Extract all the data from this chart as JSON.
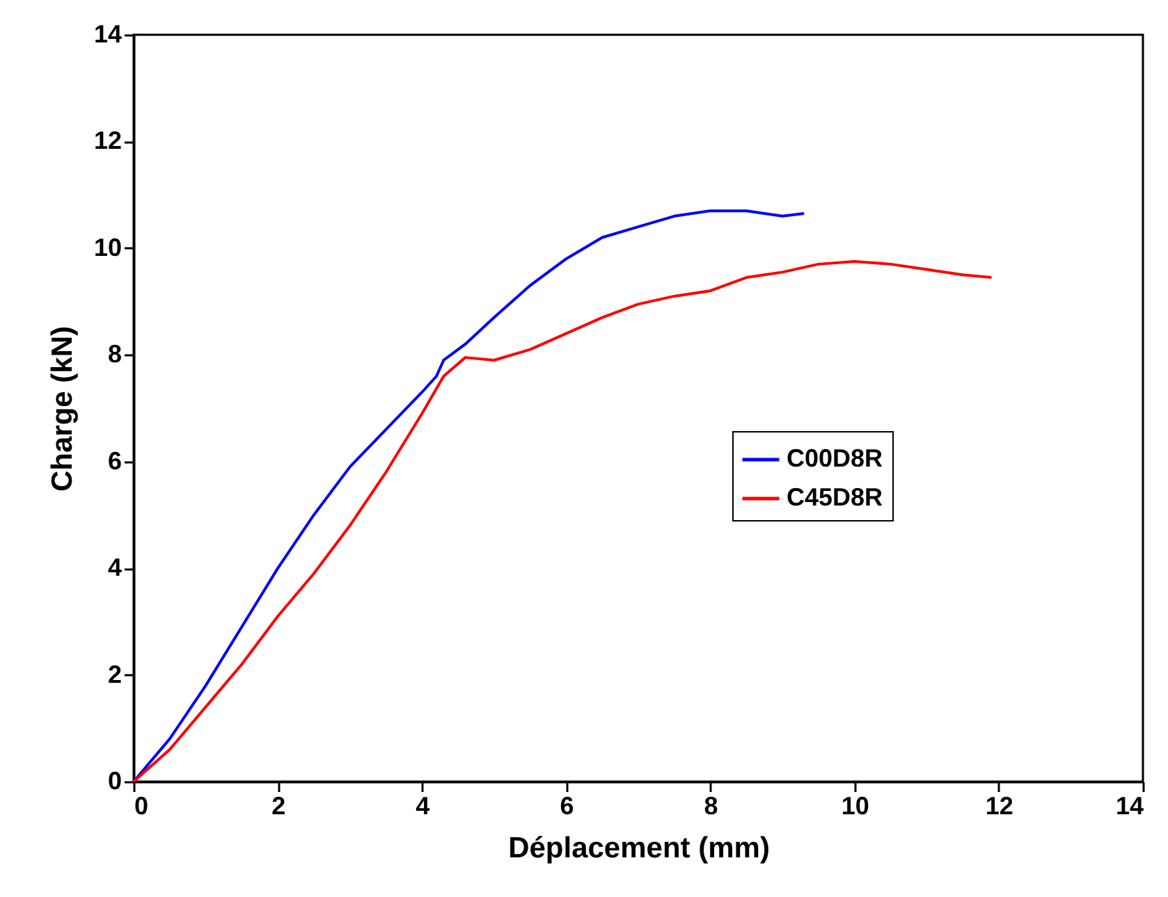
{
  "chart_data": {
    "type": "line",
    "xlabel": "Déplacement (mm)",
    "ylabel": "Charge (kN)",
    "xlim": [
      0,
      14
    ],
    "ylim": [
      0,
      14
    ],
    "xticks": [
      0,
      2,
      4,
      6,
      8,
      10,
      12,
      14
    ],
    "yticks": [
      0,
      2,
      4,
      6,
      8,
      10,
      12,
      14
    ],
    "grid": false,
    "legend": "right",
    "marker": "none",
    "line_style": "solid",
    "series": [
      {
        "name": "C00D8R",
        "color": "#0000ff",
        "x": [
          0,
          0.5,
          1,
          1.5,
          2,
          2.5,
          3,
          3.5,
          4,
          4.2,
          4.3,
          4.6,
          5,
          5.5,
          6,
          6.5,
          7,
          7.5,
          8,
          8.5,
          9,
          9.3
        ],
        "values": [
          0,
          0.8,
          1.8,
          2.9,
          4.0,
          5.0,
          5.9,
          6.6,
          7.3,
          7.6,
          7.9,
          8.2,
          8.7,
          9.3,
          9.8,
          10.2,
          10.4,
          10.6,
          10.7,
          10.7,
          10.6,
          10.65
        ]
      },
      {
        "name": "C45D8R",
        "color": "#ff0000",
        "x": [
          0,
          0.5,
          1,
          1.5,
          2,
          2.5,
          3,
          3.5,
          4,
          4.3,
          4.6,
          5,
          5.5,
          6,
          6.5,
          7,
          7.5,
          8,
          8.5,
          9,
          9.5,
          10,
          10.5,
          11,
          11.5,
          11.9
        ],
        "values": [
          0,
          0.6,
          1.4,
          2.2,
          3.1,
          3.9,
          4.8,
          5.8,
          6.9,
          7.6,
          7.95,
          7.9,
          8.1,
          8.4,
          8.7,
          8.95,
          9.1,
          9.2,
          9.45,
          9.55,
          9.7,
          9.75,
          9.7,
          9.6,
          9.5,
          9.45
        ]
      }
    ]
  }
}
